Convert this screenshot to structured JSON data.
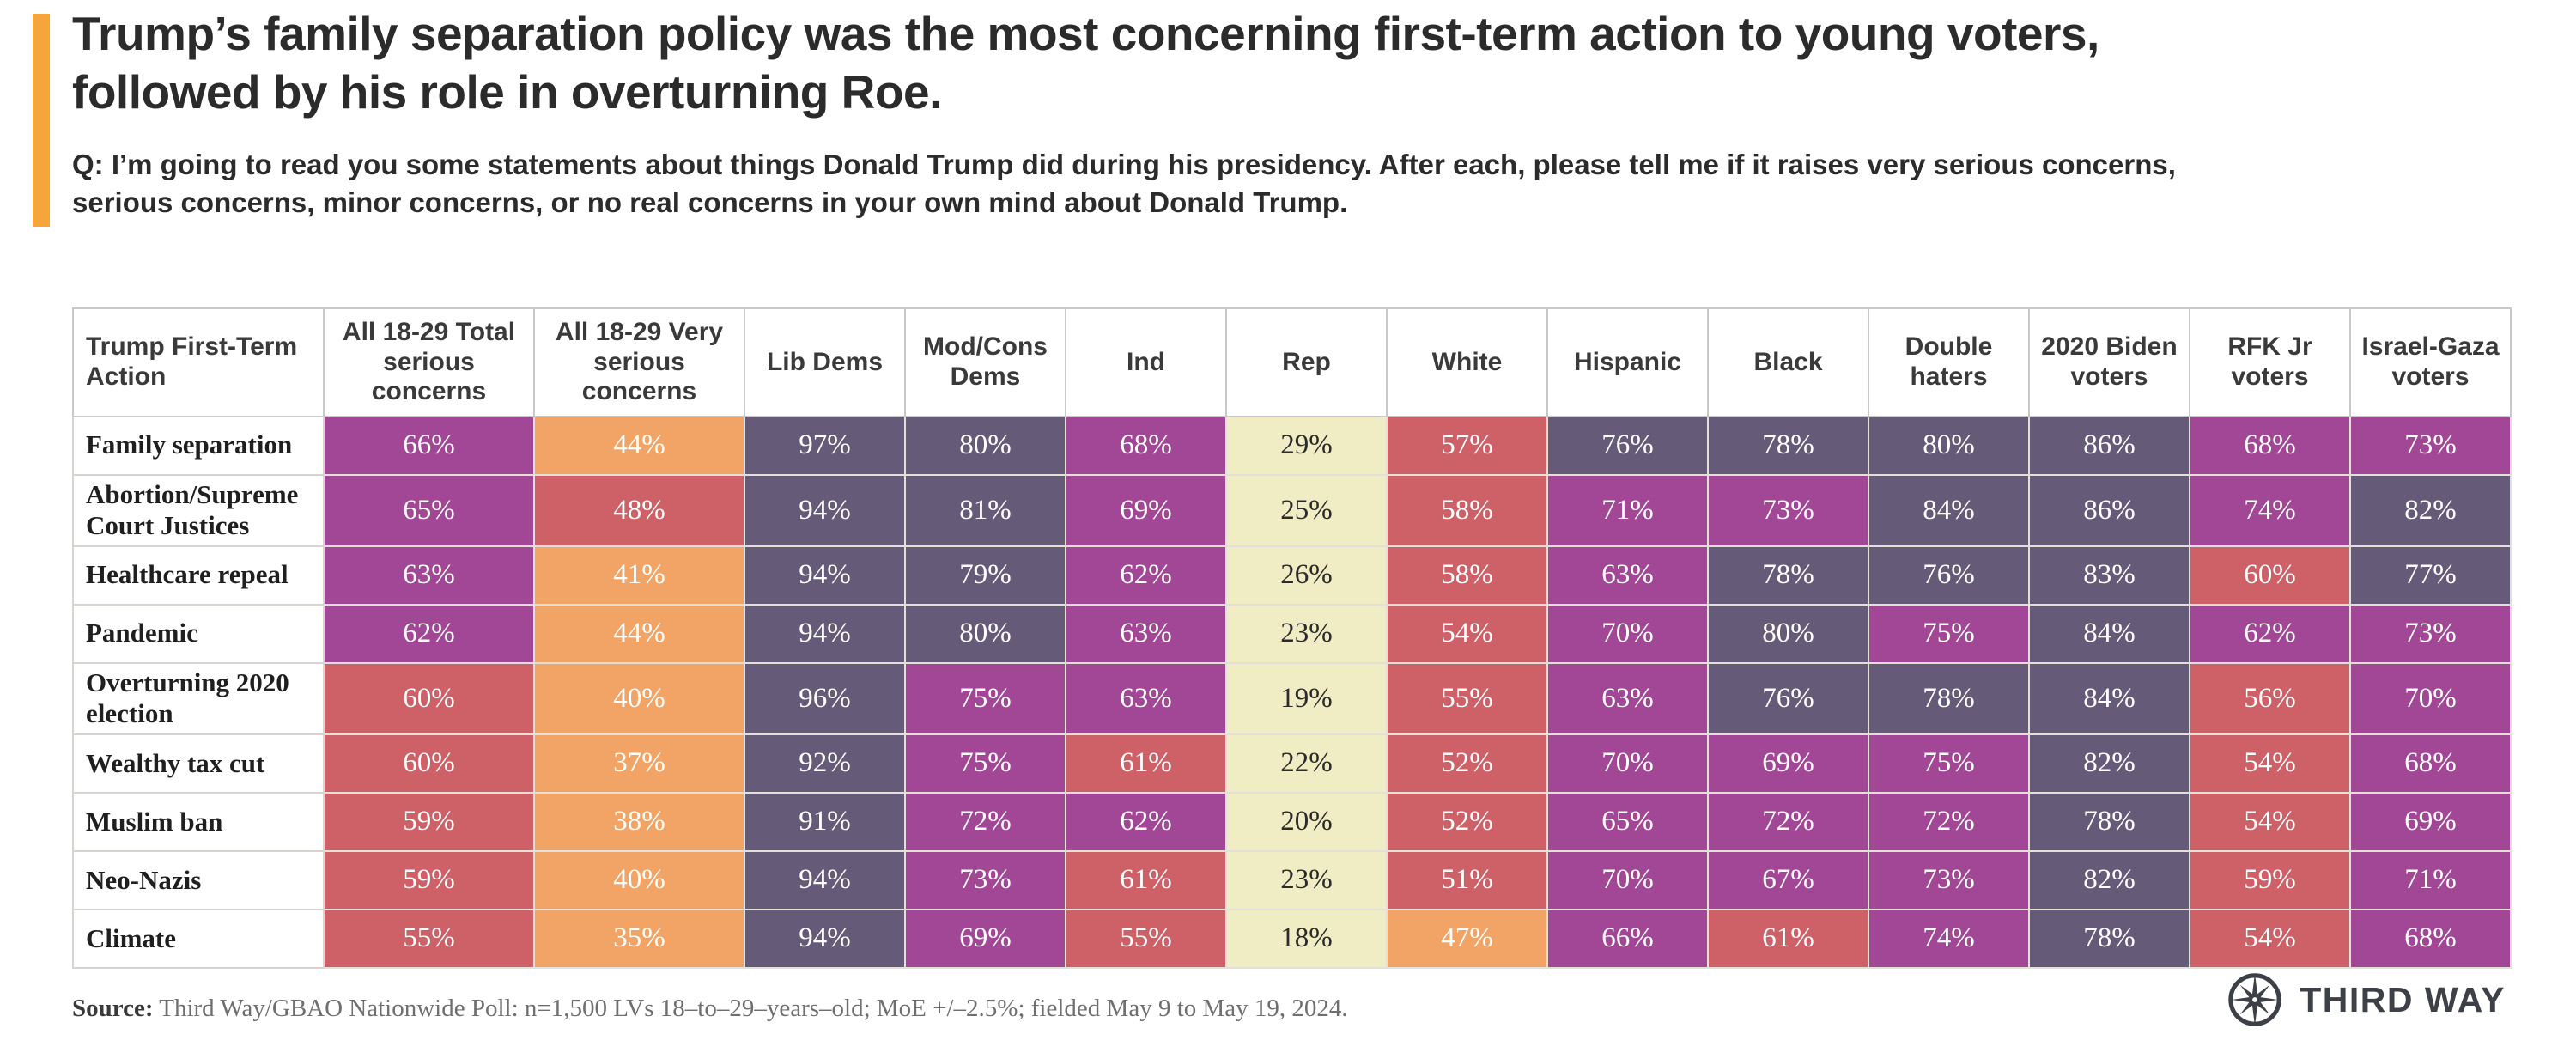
{
  "accent_color": "#F6A53C",
  "header": {
    "title": "Trump’s family separation policy was the most concerning first-term action to young voters, followed by his role in overturning Roe.",
    "question": "Q: I’m going to read you some statements about things Donald Trump did during his presidency. After each, please tell me if it raises very serious concerns, serious concerns, minor concerns, or no real concerns in your own mind about Donald Trump."
  },
  "chart_data": {
    "type": "table",
    "title": "Trump first-term actions raising serious concerns, by subgroup",
    "value_suffix": "%",
    "columns": [
      "Trump First-Term Action",
      "All 18-29 Total serious concerns",
      "All 18-29 Very serious concerns",
      "Lib Dems",
      "Mod/Cons Dems",
      "Ind",
      "Rep",
      "White",
      "Hispanic",
      "Black",
      "Double haters",
      "2020 Biden voters",
      "RFK Jr voters",
      "Israel-Gaza voters"
    ],
    "rows": [
      {
        "label": "Family separation",
        "values": [
          66,
          44,
          97,
          80,
          68,
          29,
          57,
          76,
          78,
          80,
          86,
          68,
          73
        ]
      },
      {
        "label": "Abortion/Supreme Court Justices",
        "values": [
          65,
          48,
          94,
          81,
          69,
          25,
          58,
          71,
          73,
          84,
          86,
          74,
          82
        ]
      },
      {
        "label": "Healthcare repeal",
        "values": [
          63,
          41,
          94,
          79,
          62,
          26,
          58,
          63,
          78,
          76,
          83,
          60,
          77
        ]
      },
      {
        "label": "Pandemic",
        "values": [
          62,
          44,
          94,
          80,
          63,
          23,
          54,
          70,
          80,
          75,
          84,
          62,
          73
        ]
      },
      {
        "label": "Overturning 2020 election",
        "values": [
          60,
          40,
          96,
          75,
          63,
          19,
          55,
          63,
          76,
          78,
          84,
          56,
          70
        ]
      },
      {
        "label": "Wealthy tax cut",
        "values": [
          60,
          37,
          92,
          75,
          61,
          22,
          52,
          70,
          69,
          75,
          82,
          54,
          68
        ]
      },
      {
        "label": "Muslim ban",
        "values": [
          59,
          38,
          91,
          72,
          62,
          20,
          52,
          65,
          72,
          72,
          78,
          54,
          69
        ]
      },
      {
        "label": "Neo-Nazis",
        "values": [
          59,
          40,
          94,
          73,
          61,
          23,
          51,
          70,
          67,
          73,
          82,
          59,
          71
        ]
      },
      {
        "label": "Climate",
        "values": [
          55,
          35,
          94,
          69,
          55,
          18,
          47,
          66,
          61,
          74,
          78,
          54,
          68
        ]
      }
    ],
    "color_scale": {
      "thresholds": [
        {
          "min": 76,
          "color": "#655B78"
        },
        {
          "min": 62,
          "color": "#A14796"
        },
        {
          "min": 48,
          "color": "#CD6167"
        },
        {
          "min": 35,
          "color": "#F2A466"
        },
        {
          "min": 0,
          "color": "#F0ECC3"
        }
      ],
      "dark_text_bg": "#F0ECC3",
      "legend": "darker purple = higher share with serious concerns"
    }
  },
  "footer": {
    "source_label": "Source:",
    "source_text": " Third Way/GBAO Nationwide Poll: n=1,500 LVs 18–to–29–years–old; MoE +/–2.5%; fielded May 9 to May 19, 2024.",
    "logo_text": "THIRD WAY"
  }
}
